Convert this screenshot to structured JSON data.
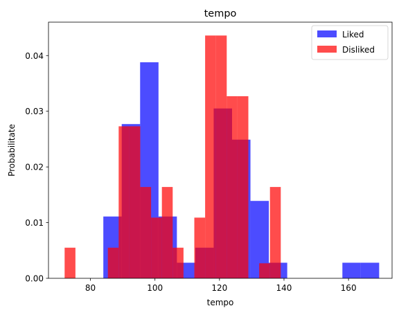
{
  "chart_data": {
    "type": "bar",
    "title": "tempo",
    "xlabel": "tempo",
    "ylabel": "Probabilitate",
    "xlim": [
      67,
      173.5
    ],
    "ylim": [
      0,
      0.046
    ],
    "xticks": [
      80,
      100,
      120,
      140,
      160
    ],
    "yticks": [
      0.0,
      0.01,
      0.02,
      0.03,
      0.04
    ],
    "ytick_labels": [
      "0.00",
      "0.01",
      "0.02",
      "0.03",
      "0.04"
    ],
    "legend_position": "top-right",
    "series": [
      {
        "name": "Liked",
        "color": "#0000ff",
        "alpha": 0.7,
        "bins": [
          {
            "x0": 84.0,
            "x1": 89.7,
            "y": 0.0111
          },
          {
            "x0": 89.7,
            "x1": 95.4,
            "y": 0.0277
          },
          {
            "x0": 95.4,
            "x1": 101.1,
            "y": 0.0388
          },
          {
            "x0": 101.1,
            "x1": 106.8,
            "y": 0.0111
          },
          {
            "x0": 106.8,
            "x1": 112.5,
            "y": 0.0028
          },
          {
            "x0": 112.5,
            "x1": 118.2,
            "y": 0.0055
          },
          {
            "x0": 118.2,
            "x1": 123.9,
            "y": 0.0305
          },
          {
            "x0": 123.9,
            "x1": 129.6,
            "y": 0.0249
          },
          {
            "x0": 129.6,
            "x1": 135.3,
            "y": 0.0139
          },
          {
            "x0": 135.3,
            "x1": 141.0,
            "y": 0.0028
          },
          {
            "x0": 141.0,
            "x1": 146.7,
            "y": 0
          },
          {
            "x0": 146.7,
            "x1": 152.4,
            "y": 0
          },
          {
            "x0": 152.4,
            "x1": 158.1,
            "y": 0
          },
          {
            "x0": 158.1,
            "x1": 163.8,
            "y": 0.0028
          },
          {
            "x0": 163.8,
            "x1": 169.5,
            "y": 0.0028
          }
        ]
      },
      {
        "name": "Disliked",
        "color": "#ff0000",
        "alpha": 0.7,
        "bins": [
          {
            "x0": 72.0,
            "x1": 75.35,
            "y": 0.0055
          },
          {
            "x0": 75.35,
            "x1": 78.7,
            "y": 0
          },
          {
            "x0": 78.7,
            "x1": 82.05,
            "y": 0
          },
          {
            "x0": 82.05,
            "x1": 85.4,
            "y": 0
          },
          {
            "x0": 85.4,
            "x1": 88.75,
            "y": 0.0055
          },
          {
            "x0": 88.75,
            "x1": 92.1,
            "y": 0.0273
          },
          {
            "x0": 92.1,
            "x1": 95.45,
            "y": 0.0273
          },
          {
            "x0": 95.45,
            "x1": 98.8,
            "y": 0.0164
          },
          {
            "x0": 98.8,
            "x1": 102.15,
            "y": 0.0109
          },
          {
            "x0": 102.15,
            "x1": 105.5,
            "y": 0.0164
          },
          {
            "x0": 105.5,
            "x1": 108.85,
            "y": 0.0055
          },
          {
            "x0": 108.85,
            "x1": 112.2,
            "y": 0
          },
          {
            "x0": 112.2,
            "x1": 115.55,
            "y": 0.0109
          },
          {
            "x0": 115.55,
            "x1": 118.9,
            "y": 0.0436
          },
          {
            "x0": 118.9,
            "x1": 122.25,
            "y": 0.0436
          },
          {
            "x0": 122.25,
            "x1": 125.6,
            "y": 0.0327
          },
          {
            "x0": 125.6,
            "x1": 128.95,
            "y": 0.0327
          },
          {
            "x0": 128.95,
            "x1": 132.3,
            "y": 0
          },
          {
            "x0": 132.3,
            "x1": 135.65,
            "y": 0.0027
          },
          {
            "x0": 135.65,
            "x1": 139.0,
            "y": 0.0164
          }
        ]
      }
    ]
  }
}
